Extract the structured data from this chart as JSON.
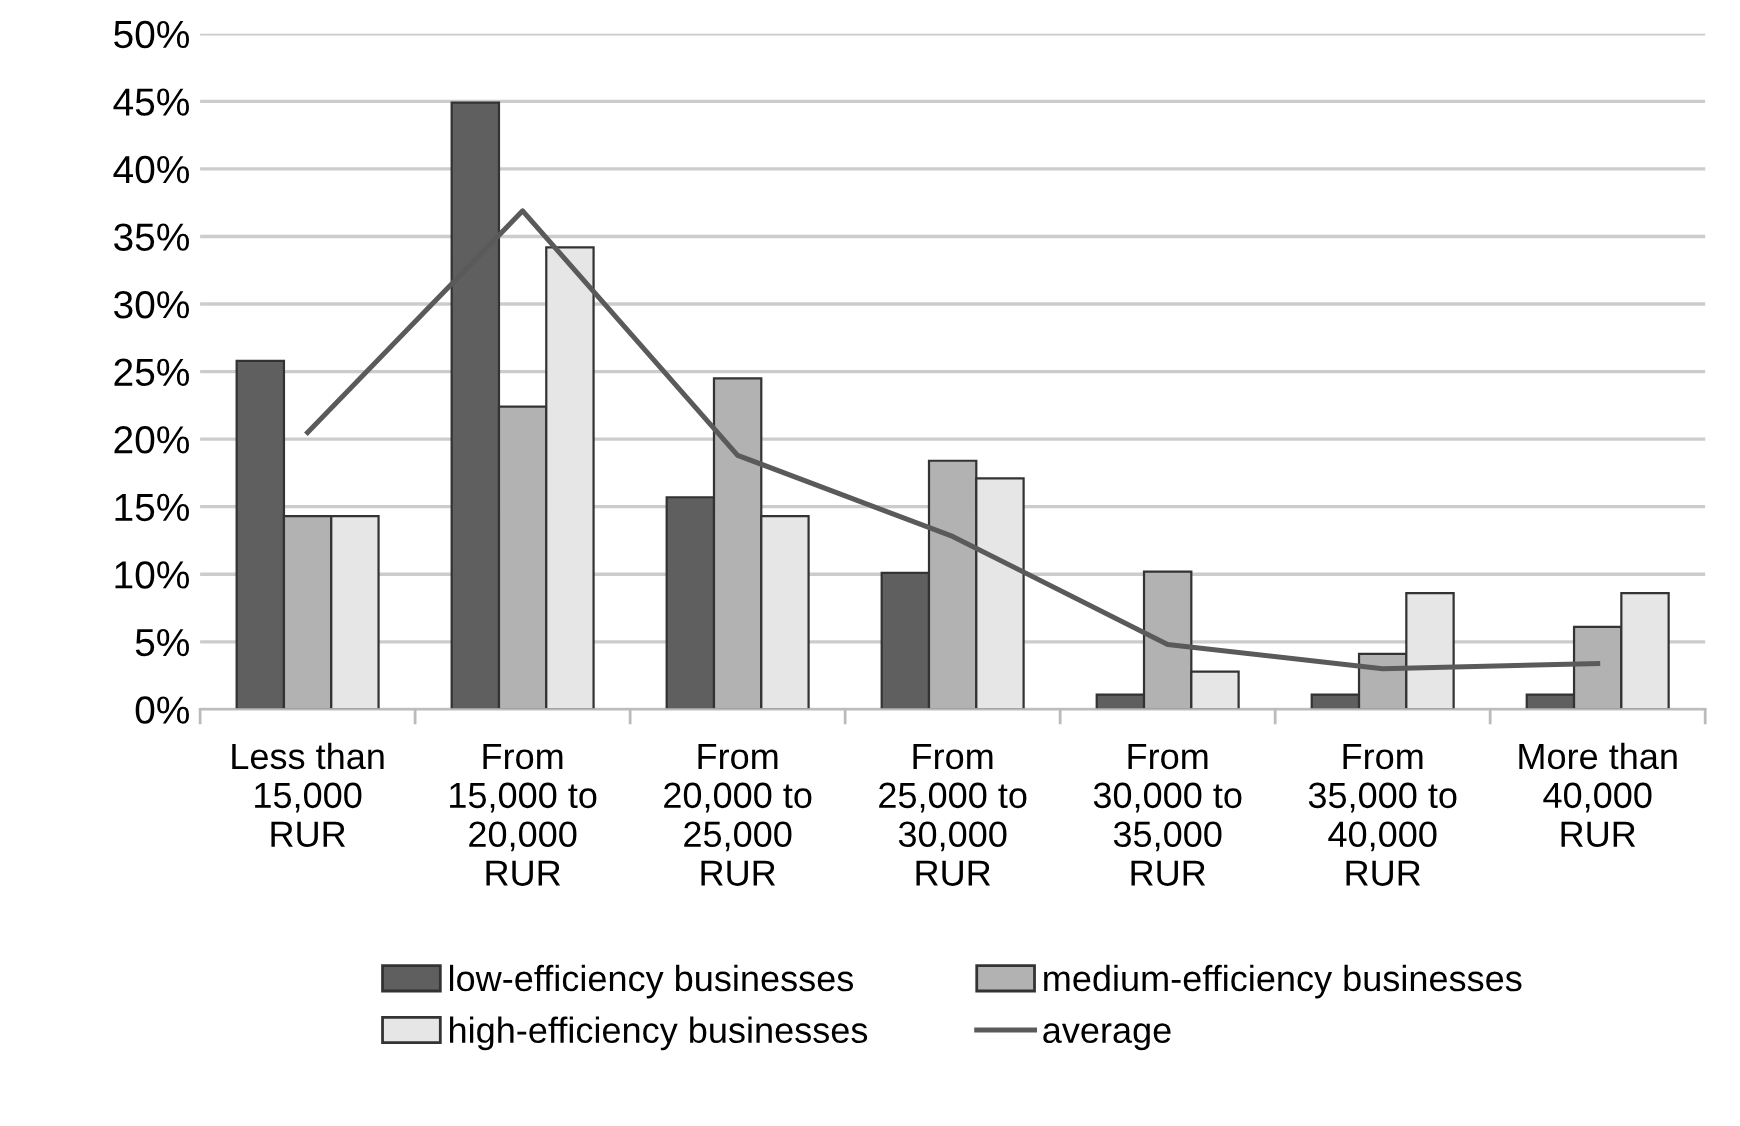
{
  "chart_data": {
    "type": "bar",
    "categories": [
      "Less than\n15,000\nRUR",
      "From\n15,000 to\n20,000\nRUR",
      "From\n20,000 to\n25,000\nRUR",
      "From\n25,000 to\n30,000\nRUR",
      "From\n30,000 to\n35,000\nRUR",
      "From\n35,000 to\n40,000\nRUR",
      "More than\n40,000\nRUR"
    ],
    "series": [
      {
        "name": "low-efficiency businesses",
        "color": "#5f5f5f",
        "values": [
          25.8,
          44.9,
          15.7,
          10.1,
          1.1,
          1.1,
          1.1
        ]
      },
      {
        "name": "medium-efficiency businesses",
        "color": "#b2b2b2",
        "values": [
          14.3,
          22.4,
          24.5,
          18.4,
          10.2,
          4.1,
          6.1
        ]
      },
      {
        "name": "high-efficiency businesses",
        "color": "#e6e6e6",
        "values": [
          14.3,
          34.2,
          14.3,
          17.1,
          2.8,
          8.6,
          8.6
        ]
      },
      {
        "name": "average",
        "type": "line",
        "color": "#5a5a5a",
        "values": [
          20.5,
          36.9,
          18.8,
          12.8,
          4.8,
          3.0,
          3.4
        ]
      }
    ],
    "ylim": [
      0,
      50
    ],
    "yticks": [
      {
        "value": 0,
        "label": "0%"
      },
      {
        "value": 5,
        "label": "5%"
      },
      {
        "value": 10,
        "label": "10%"
      },
      {
        "value": 15,
        "label": "15%"
      },
      {
        "value": 20,
        "label": "20%"
      },
      {
        "value": 25,
        "label": "25%"
      },
      {
        "value": 30,
        "label": "30%"
      },
      {
        "value": 35,
        "label": "35%"
      },
      {
        "value": 40,
        "label": "40%"
      },
      {
        "value": 45,
        "label": "45%"
      },
      {
        "value": 50,
        "label": "50%"
      }
    ],
    "grid": "y",
    "legend": "bottom",
    "marker": "none",
    "line_style": "solid"
  }
}
